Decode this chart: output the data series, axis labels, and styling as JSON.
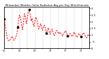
{
  "title": "Milwaukee Weather Solar Radiation Avg per Day W/m2/minute",
  "y_values": [
    220,
    170,
    120,
    80,
    60,
    55,
    65,
    75,
    90,
    80,
    60,
    70,
    90,
    95,
    160,
    220,
    250,
    230,
    175,
    140,
    195,
    260,
    240,
    185,
    225,
    270,
    290,
    255,
    205,
    225,
    185,
    165,
    205,
    235,
    215,
    175,
    145,
    165,
    185,
    155,
    135,
    165,
    175,
    145,
    115,
    135,
    155,
    125,
    105,
    135,
    145,
    115,
    95,
    105,
    125,
    135,
    120,
    108,
    122,
    112,
    102,
    92,
    112,
    122,
    132,
    118,
    93,
    82,
    102,
    112,
    97,
    88,
    102,
    122,
    108,
    92,
    82,
    97,
    112,
    102,
    88,
    95,
    108,
    118,
    102,
    88,
    78,
    92,
    105,
    95
  ],
  "marker_indices": [
    0,
    14,
    26,
    44,
    66,
    80
  ],
  "line_color": "#ff0000",
  "marker_color": "#000000",
  "grid_color": "#999999",
  "bg_color": "#ffffff",
  "border_color": "#000000",
  "ylim": [
    0,
    310
  ],
  "ytick_labels": [
    "3",
    "2.5",
    "2",
    "1.5",
    "1",
    ".5",
    "0"
  ],
  "ytick_values": [
    300,
    250,
    200,
    150,
    100,
    50,
    0
  ],
  "n_vgrid": 11,
  "x_labels": [
    "6/1",
    "6/3",
    "6/5",
    "6/7",
    "6/9",
    "7/1",
    "7/3",
    "7/5",
    "7/7",
    "7/9",
    "7/1",
    "7/3"
  ]
}
